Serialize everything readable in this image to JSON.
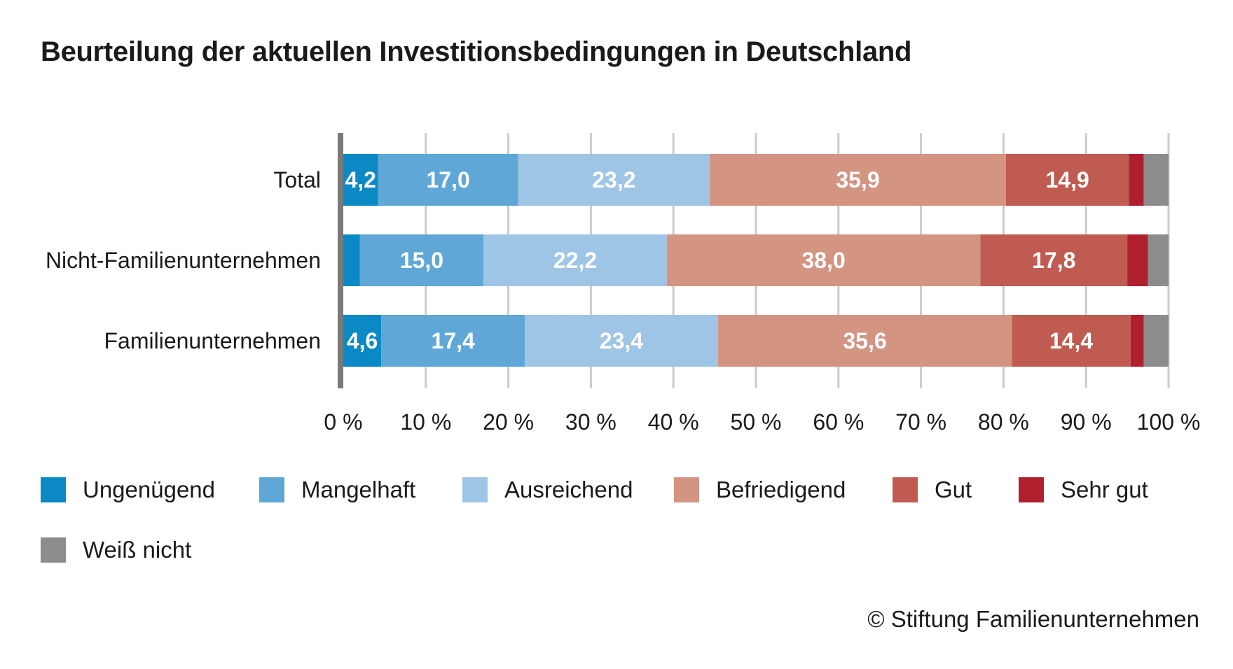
{
  "chart_data": {
    "type": "bar",
    "orientation": "horizontal",
    "stacked": true,
    "title": "Beurteilung der aktuellen Investitionsbedingungen in Deutschland",
    "categories": [
      "Total",
      "Nicht-Familienunternehmen",
      "Familienunternehmen"
    ],
    "series": [
      {
        "name": "Ungenügend",
        "color": "#0a89c4",
        "values": [
          4.2,
          2.0,
          4.6
        ],
        "labels": [
          "4,2",
          "",
          "4,6"
        ]
      },
      {
        "name": "Mangelhaft",
        "color": "#5ea7d6",
        "values": [
          17.0,
          15.0,
          17.4
        ],
        "labels": [
          "17,0",
          "15,0",
          "17,4"
        ]
      },
      {
        "name": "Ausreichend",
        "color": "#9fc5e6",
        "values": [
          23.2,
          22.2,
          23.4
        ],
        "labels": [
          "23,2",
          "22,2",
          "23,4"
        ]
      },
      {
        "name": "Befriedigend",
        "color": "#d39482",
        "values": [
          35.9,
          38.0,
          35.6
        ],
        "labels": [
          "35,9",
          "38,0",
          "35,6"
        ]
      },
      {
        "name": "Gut",
        "color": "#c05b51",
        "values": [
          14.9,
          17.8,
          14.4
        ],
        "labels": [
          "14,9",
          "17,8",
          "14,4"
        ]
      },
      {
        "name": "Sehr gut",
        "color": "#b01f2e",
        "values": [
          1.8,
          2.5,
          1.6
        ],
        "labels": [
          "",
          "",
          ""
        ]
      },
      {
        "name": "Weiß nicht",
        "color": "#8c8c8c",
        "values": [
          3.0,
          2.5,
          3.0
        ],
        "labels": [
          "",
          "",
          ""
        ]
      }
    ],
    "xlim": [
      0,
      100
    ],
    "xticks": [
      0,
      10,
      20,
      30,
      40,
      50,
      60,
      70,
      80,
      90,
      100
    ],
    "xtick_labels": [
      "0 %",
      "10 %",
      "20 %",
      "30 %",
      "40 %",
      "50 %",
      "60 %",
      "70 %",
      "80 %",
      "90 %",
      "100 %"
    ],
    "grid": true,
    "legend_position": "bottom",
    "source": "© Stiftung Familienunternehmen"
  }
}
